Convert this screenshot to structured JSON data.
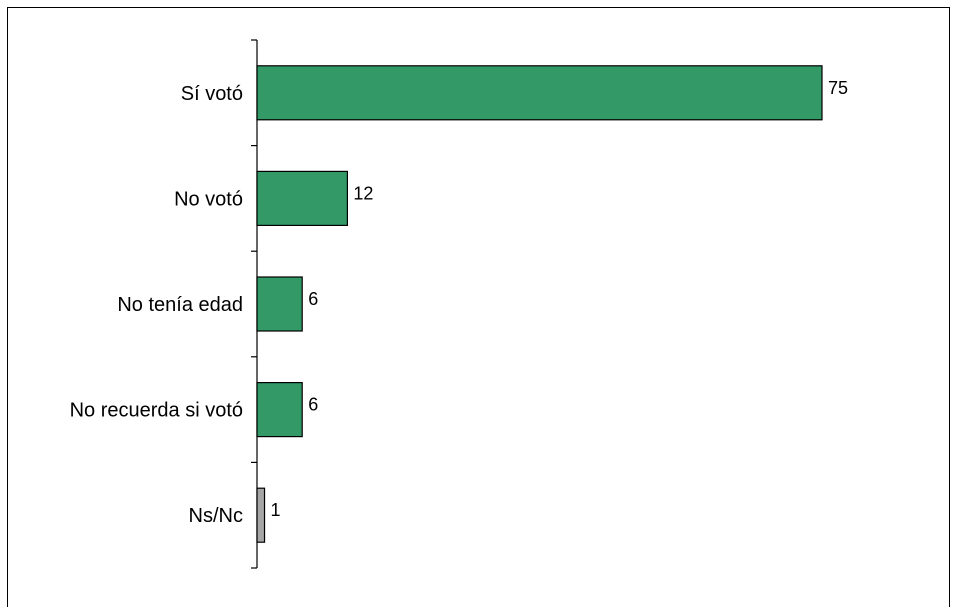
{
  "chart_data": {
    "type": "bar",
    "orientation": "horizontal",
    "categories": [
      "Sí votó",
      "No votó ",
      "No tenía edad",
      "No recuerda si votó",
      "Ns/Nc"
    ],
    "values": [
      75,
      12,
      6,
      6,
      1
    ],
    "bar_colors": [
      "#339966",
      "#339966",
      "#339966",
      "#339966",
      "#a6a6a6"
    ],
    "title": "",
    "xlabel": "",
    "ylabel": "",
    "xlim": [
      0,
      75
    ],
    "grid": false,
    "legend": "none"
  }
}
